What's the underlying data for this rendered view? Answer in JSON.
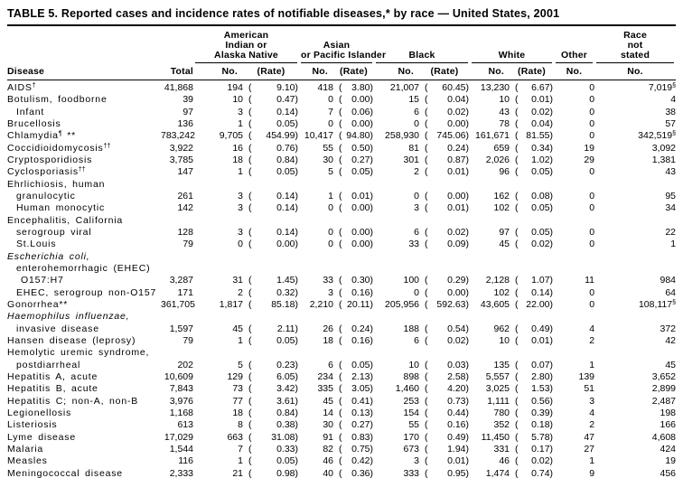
{
  "title": "TABLE 5. Reported cases and incidence rates of notifiable diseases,* by race — United States, 2001",
  "table": {
    "header": {
      "disease_label": "Disease",
      "total_label": "Total",
      "groups": [
        {
          "name": "American Indian or Alaska Native",
          "lines": [
            "American",
            "Indian or",
            "Alaska Native"
          ],
          "columns": [
            "No.",
            "(Rate)"
          ]
        },
        {
          "name": "Asian or Pacific Islander",
          "lines": [
            "Asian",
            "or Pacific Islander"
          ],
          "columns": [
            "No.",
            "(Rate)"
          ]
        },
        {
          "name": "Black",
          "lines": [
            "Black"
          ],
          "columns": [
            "No.",
            "(Rate)"
          ]
        },
        {
          "name": "White",
          "lines": [
            "White"
          ],
          "columns": [
            "No.",
            "(Rate)"
          ]
        },
        {
          "name": "Other",
          "lines": [
            "Other"
          ],
          "columns": [
            "No."
          ]
        },
        {
          "name": "Race not stated",
          "lines": [
            "Race",
            "not",
            "stated"
          ],
          "columns": [
            "No."
          ]
        }
      ]
    },
    "rows": [
      {
        "label": "AIDS",
        "sup": "†",
        "indent": 0,
        "cells": {
          "total": "41,868",
          "aian_no": "194",
          "aian_rate": "( 9.10)",
          "api_no": "418",
          "api_rate": "( 3.80)",
          "black_no": "21,007",
          "black_rate": "( 60.45)",
          "white_no": "13,230",
          "white_rate": "( 6.67)",
          "other_no": "0",
          "race_not_stated_no": "7,019",
          "race_not_stated_sup": "§"
        }
      },
      {
        "label": "Botulism, foodborne",
        "indent": 0,
        "cells": {
          "total": "39",
          "aian_no": "10",
          "aian_rate": "( 0.47)",
          "api_no": "0",
          "api_rate": "( 0.00)",
          "black_no": "15",
          "black_rate": "( 0.04)",
          "white_no": "10",
          "white_rate": "( 0.01)",
          "other_no": "0",
          "race_not_stated_no": "4"
        }
      },
      {
        "label": "Infant",
        "indent": 1,
        "cells": {
          "total": "97",
          "aian_no": "3",
          "aian_rate": "( 0.14)",
          "api_no": "7",
          "api_rate": "( 0.06)",
          "black_no": "6",
          "black_rate": "( 0.02)",
          "white_no": "43",
          "white_rate": "( 0.02)",
          "other_no": "0",
          "race_not_stated_no": "38"
        }
      },
      {
        "label": "Brucellosis",
        "indent": 0,
        "cells": {
          "total": "136",
          "aian_no": "1",
          "aian_rate": "( 0.05)",
          "api_no": "0",
          "api_rate": "( 0.00)",
          "black_no": "0",
          "black_rate": "( 0.00)",
          "white_no": "78",
          "white_rate": "( 0.04)",
          "other_no": "0",
          "race_not_stated_no": "57"
        }
      },
      {
        "label": "Chlamydia",
        "sup": "¶",
        "mark": " **",
        "indent": 0,
        "cells": {
          "total": "783,242",
          "aian_no": "9,705",
          "aian_rate": "(454.99)",
          "api_no": "10,417",
          "api_rate": "(94.80)",
          "black_no": "258,930",
          "black_rate": "(745.06)",
          "white_no": "161,671",
          "white_rate": "(81.55)",
          "other_no": "0",
          "race_not_stated_no": "342,519",
          "race_not_stated_sup": "§"
        }
      },
      {
        "label": "Coccidioidomycosis",
        "sup": "††",
        "indent": 0,
        "cells": {
          "total": "3,922",
          "aian_no": "16",
          "aian_rate": "( 0.76)",
          "api_no": "55",
          "api_rate": "( 0.50)",
          "black_no": "81",
          "black_rate": "( 0.24)",
          "white_no": "659",
          "white_rate": "( 0.34)",
          "other_no": "19",
          "race_not_stated_no": "3,092"
        }
      },
      {
        "label": "Cryptosporidiosis",
        "indent": 0,
        "cells": {
          "total": "3,785",
          "aian_no": "18",
          "aian_rate": "( 0.84)",
          "api_no": "30",
          "api_rate": "( 0.27)",
          "black_no": "301",
          "black_rate": "( 0.87)",
          "white_no": "2,026",
          "white_rate": "( 1.02)",
          "other_no": "29",
          "race_not_stated_no": "1,381"
        }
      },
      {
        "label": "Cyclosporiasis",
        "sup": "††",
        "indent": 0,
        "cells": {
          "total": "147",
          "aian_no": "1",
          "aian_rate": "( 0.05)",
          "api_no": "5",
          "api_rate": "( 0.05)",
          "black_no": "2",
          "black_rate": "( 0.01)",
          "white_no": "96",
          "white_rate": "( 0.05)",
          "other_no": "0",
          "race_not_stated_no": "43"
        }
      },
      {
        "label": "Ehrlichiosis, human",
        "indent": 0
      },
      {
        "label": "granulocytic",
        "indent": 1,
        "cells": {
          "total": "261",
          "aian_no": "3",
          "aian_rate": "( 0.14)",
          "api_no": "1",
          "api_rate": "( 0.01)",
          "black_no": "0",
          "black_rate": "( 0.00)",
          "white_no": "162",
          "white_rate": "( 0.08)",
          "other_no": "0",
          "race_not_stated_no": "95"
        }
      },
      {
        "label": "Human monocytic",
        "indent": 1,
        "cells": {
          "total": "142",
          "aian_no": "3",
          "aian_rate": "( 0.14)",
          "api_no": "0",
          "api_rate": "( 0.00)",
          "black_no": "3",
          "black_rate": "( 0.01)",
          "white_no": "102",
          "white_rate": "( 0.05)",
          "other_no": "0",
          "race_not_stated_no": "34"
        }
      },
      {
        "label": "Encephalitis, California",
        "indent": 0
      },
      {
        "label": "serogroup viral",
        "indent": 1,
        "cells": {
          "total": "128",
          "aian_no": "3",
          "aian_rate": "( 0.14)",
          "api_no": "0",
          "api_rate": "( 0.00)",
          "black_no": "6",
          "black_rate": "( 0.02)",
          "white_no": "97",
          "white_rate": "( 0.05)",
          "other_no": "0",
          "race_not_stated_no": "22"
        }
      },
      {
        "label": "St.Louis",
        "indent": 1,
        "cells": {
          "total": "79",
          "aian_no": "0",
          "aian_rate": "( 0.00)",
          "api_no": "0",
          "api_rate": "( 0.00)",
          "black_no": "33",
          "black_rate": "( 0.09)",
          "white_no": "45",
          "white_rate": "( 0.02)",
          "other_no": "0",
          "race_not_stated_no": "1"
        }
      },
      {
        "label": "Escherichia coli,",
        "indent": 0,
        "italic": true
      },
      {
        "label": "enterohemorrhagic (EHEC)",
        "indent": 1
      },
      {
        "label": "O157:H7",
        "indent": 2,
        "cells": {
          "total": "3,287",
          "aian_no": "31",
          "aian_rate": "( 1.45)",
          "api_no": "33",
          "api_rate": "( 0.30)",
          "black_no": "100",
          "black_rate": "( 0.29)",
          "white_no": "2,128",
          "white_rate": "( 1.07)",
          "other_no": "11",
          "race_not_stated_no": "984"
        }
      },
      {
        "label": "EHEC, serogroup non-O157",
        "indent": 1,
        "cells": {
          "total": "171",
          "aian_no": "2",
          "aian_rate": "( 0.32)",
          "api_no": "3",
          "api_rate": "( 0.16)",
          "black_no": "0",
          "black_rate": "( 0.00)",
          "white_no": "102",
          "white_rate": "( 0.14)",
          "other_no": "0",
          "race_not_stated_no": "64"
        }
      },
      {
        "label": "Gonorrhea",
        "mark": "**",
        "indent": 0,
        "cells": {
          "total": "361,705",
          "aian_no": "1,817",
          "aian_rate": "( 85.18)",
          "api_no": "2,210",
          "api_rate": "(20.11)",
          "black_no": "205,956",
          "black_rate": "(592.63)",
          "white_no": "43,605",
          "white_rate": "(22.00)",
          "other_no": "0",
          "race_not_stated_no": "108,117",
          "race_not_stated_sup": "§"
        }
      },
      {
        "label": "Haemophilus influenzae,",
        "indent": 0,
        "italic": true
      },
      {
        "label": "invasive disease",
        "indent": 1,
        "cells": {
          "total": "1,597",
          "aian_no": "45",
          "aian_rate": "( 2.11)",
          "api_no": "26",
          "api_rate": "( 0.24)",
          "black_no": "188",
          "black_rate": "( 0.54)",
          "white_no": "962",
          "white_rate": "( 0.49)",
          "other_no": "4",
          "race_not_stated_no": "372"
        }
      },
      {
        "label": "Hansen disease (leprosy)",
        "indent": 0,
        "cells": {
          "total": "79",
          "aian_no": "1",
          "aian_rate": "( 0.05)",
          "api_no": "18",
          "api_rate": "( 0.16)",
          "black_no": "6",
          "black_rate": "( 0.02)",
          "white_no": "10",
          "white_rate": "( 0.01)",
          "other_no": "2",
          "race_not_stated_no": "42"
        }
      },
      {
        "label": "Hemolytic uremic syndrome,",
        "indent": 0
      },
      {
        "label": "postdiarrheal",
        "indent": 1,
        "cells": {
          "total": "202",
          "aian_no": "5",
          "aian_rate": "( 0.23)",
          "api_no": "6",
          "api_rate": "( 0.05)",
          "black_no": "10",
          "black_rate": "( 0.03)",
          "white_no": "135",
          "white_rate": "( 0.07)",
          "other_no": "1",
          "race_not_stated_no": "45"
        }
      },
      {
        "label": "Hepatitis A, acute",
        "indent": 0,
        "cells": {
          "total": "10,609",
          "aian_no": "129",
          "aian_rate": "( 6.05)",
          "api_no": "234",
          "api_rate": "( 2.13)",
          "black_no": "898",
          "black_rate": "( 2.58)",
          "white_no": "5,557",
          "white_rate": "( 2.80)",
          "other_no": "139",
          "race_not_stated_no": "3,652"
        }
      },
      {
        "label": "Hepatitis B, acute",
        "indent": 0,
        "cells": {
          "total": "7,843",
          "aian_no": "73",
          "aian_rate": "( 3.42)",
          "api_no": "335",
          "api_rate": "( 3.05)",
          "black_no": "1,460",
          "black_rate": "( 4.20)",
          "white_no": "3,025",
          "white_rate": "( 1.53)",
          "other_no": "51",
          "race_not_stated_no": "2,899"
        }
      },
      {
        "label": "Hepatitis C; non-A, non-B",
        "indent": 0,
        "cells": {
          "total": "3,976",
          "aian_no": "77",
          "aian_rate": "( 3.61)",
          "api_no": "45",
          "api_rate": "( 0.41)",
          "black_no": "253",
          "black_rate": "( 0.73)",
          "white_no": "1,111",
          "white_rate": "( 0.56)",
          "other_no": "3",
          "race_not_stated_no": "2,487"
        }
      },
      {
        "label": "Legionellosis",
        "indent": 0,
        "cells": {
          "total": "1,168",
          "aian_no": "18",
          "aian_rate": "( 0.84)",
          "api_no": "14",
          "api_rate": "( 0.13)",
          "black_no": "154",
          "black_rate": "( 0.44)",
          "white_no": "780",
          "white_rate": "( 0.39)",
          "other_no": "4",
          "race_not_stated_no": "198"
        }
      },
      {
        "label": "Listeriosis",
        "indent": 0,
        "cells": {
          "total": "613",
          "aian_no": "8",
          "aian_rate": "( 0.38)",
          "api_no": "30",
          "api_rate": "( 0.27)",
          "black_no": "55",
          "black_rate": "( 0.16)",
          "white_no": "352",
          "white_rate": "( 0.18)",
          "other_no": "2",
          "race_not_stated_no": "166"
        }
      },
      {
        "label": "Lyme disease",
        "indent": 0,
        "cells": {
          "total": "17,029",
          "aian_no": "663",
          "aian_rate": "( 31.08)",
          "api_no": "91",
          "api_rate": "( 0.83)",
          "black_no": "170",
          "black_rate": "( 0.49)",
          "white_no": "11,450",
          "white_rate": "( 5.78)",
          "other_no": "47",
          "race_not_stated_no": "4,608"
        }
      },
      {
        "label": "Malaria",
        "indent": 0,
        "cells": {
          "total": "1,544",
          "aian_no": "7",
          "aian_rate": "( 0.33)",
          "api_no": "82",
          "api_rate": "( 0.75)",
          "black_no": "673",
          "black_rate": "( 1.94)",
          "white_no": "331",
          "white_rate": "( 0.17)",
          "other_no": "27",
          "race_not_stated_no": "424"
        }
      },
      {
        "label": "Measles",
        "indent": 0,
        "cells": {
          "total": "116",
          "aian_no": "1",
          "aian_rate": "( 0.05)",
          "api_no": "46",
          "api_rate": "( 0.42)",
          "black_no": "3",
          "black_rate": "( 0.01)",
          "white_no": "46",
          "white_rate": "( 0.02)",
          "other_no": "1",
          "race_not_stated_no": "19"
        }
      },
      {
        "label": "Meningococcal disease",
        "indent": 0,
        "cells": {
          "total": "2,333",
          "aian_no": "21",
          "aian_rate": "( 0.98)",
          "api_no": "40",
          "api_rate": "( 0.36)",
          "black_no": "333",
          "black_rate": "( 0.95)",
          "white_no": "1,474",
          "white_rate": "( 0.74)",
          "other_no": "9",
          "race_not_stated_no": "456"
        }
      }
    ]
  }
}
